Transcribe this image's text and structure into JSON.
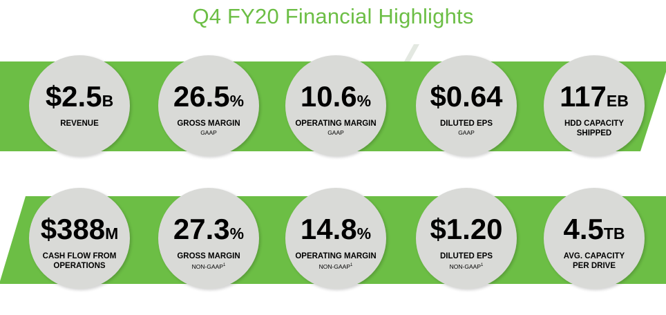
{
  "title": "Q4 FY20 Financial Highlights",
  "colors": {
    "green": "#6cbe45",
    "circle": "#d9dad7"
  },
  "row1": [
    {
      "value": "$2.5",
      "unit": "B",
      "label": "REVENUE",
      "label2": "",
      "sub": "",
      "sup": ""
    },
    {
      "value": "26.5",
      "unit": "%",
      "label": "GROSS MARGIN",
      "label2": "",
      "sub": "GAAP",
      "sup": ""
    },
    {
      "value": "10.6",
      "unit": "%",
      "label": "OPERATING MARGIN",
      "label2": "",
      "sub": "GAAP",
      "sup": ""
    },
    {
      "value": "$0.64",
      "unit": "",
      "label": "DILUTED EPS",
      "label2": "",
      "sub": "GAAP",
      "sup": ""
    },
    {
      "value": "117",
      "unit": "EB",
      "label": "HDD CAPACITY",
      "label2": "SHIPPED",
      "sub": "",
      "sup": ""
    }
  ],
  "row2": [
    {
      "value": "$388",
      "unit": "M",
      "label": "CASH FLOW FROM",
      "label2": "OPERATIONS",
      "sub": "",
      "sup": ""
    },
    {
      "value": "27.3",
      "unit": "%",
      "label": "GROSS MARGIN",
      "label2": "",
      "sub": "NON-GAAP",
      "sup": "1"
    },
    {
      "value": "14.8",
      "unit": "%",
      "label": "OPERATING MARGIN",
      "label2": "",
      "sub": "NON-GAAP",
      "sup": "1"
    },
    {
      "value": "$1.20",
      "unit": "",
      "label": "DILUTED EPS",
      "label2": "",
      "sub": "NON-GAAP",
      "sup": "1"
    },
    {
      "value": "4.5",
      "unit": "TB",
      "label": "AVG. CAPACITY",
      "label2": "PER DRIVE",
      "sub": "",
      "sup": ""
    }
  ]
}
